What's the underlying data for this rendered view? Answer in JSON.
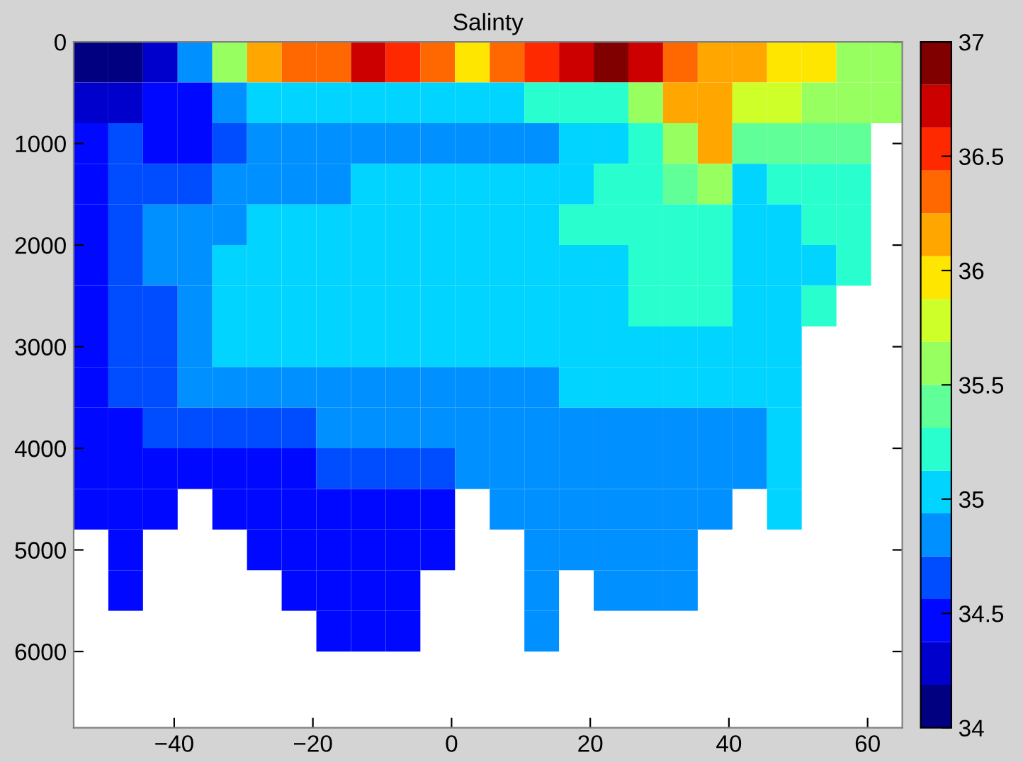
{
  "chart_data": {
    "type": "heatmap",
    "title": "Salinty",
    "x": [
      -52,
      -47,
      -42,
      -37,
      -32,
      -27,
      -22,
      -17,
      -12,
      -7,
      -2,
      3,
      8,
      13,
      18,
      23,
      28,
      33,
      38,
      43,
      48,
      53,
      58,
      63
    ],
    "y": [
      200,
      600,
      1000,
      1400,
      1800,
      2200,
      2600,
      3000,
      3400,
      3800,
      4200,
      4600,
      5000,
      5400,
      5800
    ],
    "xlim": [
      -54.5,
      65
    ],
    "xticks": [
      {
        "value": -40,
        "label": "−40"
      },
      {
        "value": -20,
        "label": "−20"
      },
      0,
      20,
      40,
      60
    ],
    "ylim": [
      6750,
      0
    ],
    "yticks": [
      0,
      1000,
      2000,
      3000,
      4000,
      5000,
      6000
    ],
    "clim": [
      34,
      37
    ],
    "cticks": [
      34,
      34.5,
      35,
      35.5,
      36,
      36.5,
      37
    ],
    "cells": [
      [
        34.1,
        34.1,
        34.3,
        34.8,
        35.5,
        36.1,
        36.3,
        36.4,
        36.7,
        36.5,
        36.3,
        36.0,
        36.3,
        36.6,
        36.8,
        36.9,
        36.7,
        36.3,
        36.1,
        36.1,
        36.0,
        35.9,
        35.6,
        35.5
      ],
      [
        34.3,
        34.3,
        34.4,
        34.45,
        34.9,
        35.0,
        35.0,
        35.0,
        35.0,
        35.1,
        35.1,
        35.1,
        35.0,
        35.2,
        35.2,
        35.3,
        35.6,
        36.1,
        36.1,
        35.7,
        35.7,
        35.5,
        35.5,
        35.5
      ],
      [
        34.45,
        34.6,
        34.4,
        34.45,
        34.7,
        34.8,
        34.8,
        34.8,
        34.8,
        34.8,
        34.8,
        34.9,
        34.9,
        34.9,
        35.1,
        35.1,
        35.2,
        35.5,
        36.1,
        35.4,
        35.4,
        35.4,
        35.4,
        null
      ],
      [
        34.5,
        34.7,
        34.6,
        34.7,
        34.8,
        34.9,
        34.9,
        34.9,
        35.0,
        35.0,
        35.0,
        35.0,
        35.0,
        35.1,
        35.1,
        35.2,
        35.3,
        35.4,
        35.6,
        35.1,
        35.3,
        35.3,
        35.3,
        null
      ],
      [
        34.5,
        34.7,
        34.8,
        34.8,
        34.9,
        35.0,
        35.0,
        35.0,
        35.0,
        35.0,
        35.0,
        35.1,
        35.1,
        35.1,
        35.2,
        35.2,
        35.3,
        35.2,
        35.2,
        35.0,
        35.0,
        35.2,
        35.3,
        null
      ],
      [
        34.5,
        34.6,
        34.8,
        34.9,
        35.0,
        35.1,
        35.1,
        35.1,
        35.1,
        35.1,
        35.1,
        35.1,
        35.1,
        35.1,
        35.1,
        35.1,
        35.2,
        35.2,
        35.2,
        35.0,
        35.0,
        35.1,
        35.3,
        null
      ],
      [
        34.5,
        34.6,
        34.7,
        34.9,
        35.1,
        35.1,
        35.1,
        35.1,
        35.1,
        35.1,
        35.1,
        35.1,
        35.1,
        35.1,
        35.1,
        35.1,
        35.2,
        35.2,
        35.2,
        35.0,
        35.0,
        35.2,
        null,
        null
      ],
      [
        34.5,
        34.6,
        34.7,
        34.9,
        35.0,
        35.0,
        35.0,
        35.0,
        35.0,
        35.0,
        35.0,
        35.0,
        35.0,
        35.0,
        35.0,
        35.1,
        35.1,
        35.1,
        35.1,
        35.0,
        35.0,
        null,
        null,
        null
      ],
      [
        34.5,
        34.6,
        34.7,
        34.8,
        34.8,
        34.9,
        34.9,
        34.9,
        34.9,
        34.9,
        34.9,
        34.9,
        34.9,
        34.9,
        35.0,
        35.0,
        35.0,
        35.1,
        35.0,
        35.0,
        35.1,
        null,
        null,
        null
      ],
      [
        34.5,
        34.5,
        34.6,
        34.7,
        34.7,
        34.7,
        34.7,
        34.8,
        34.8,
        34.8,
        34.8,
        34.8,
        34.9,
        34.8,
        34.9,
        34.9,
        34.9,
        34.9,
        34.9,
        34.9,
        35.0,
        null,
        null,
        null
      ],
      [
        34.5,
        34.5,
        34.5,
        34.5,
        34.5,
        34.5,
        34.5,
        34.6,
        34.6,
        34.6,
        34.6,
        34.8,
        34.8,
        34.8,
        34.9,
        34.8,
        34.9,
        34.9,
        34.9,
        34.9,
        35.0,
        null,
        null,
        null
      ],
      [
        34.5,
        34.5,
        34.5,
        null,
        34.5,
        34.5,
        34.5,
        34.5,
        34.5,
        34.5,
        34.5,
        null,
        34.8,
        34.8,
        34.9,
        34.8,
        34.9,
        34.9,
        34.9,
        null,
        35.0,
        null,
        null,
        null
      ],
      [
        null,
        34.45,
        null,
        null,
        null,
        34.5,
        34.5,
        34.5,
        34.5,
        34.5,
        34.5,
        null,
        null,
        34.8,
        34.9,
        34.8,
        34.9,
        34.9,
        null,
        null,
        null,
        null,
        null,
        null
      ],
      [
        null,
        34.5,
        null,
        null,
        null,
        null,
        34.5,
        34.5,
        34.5,
        34.5,
        null,
        null,
        null,
        34.8,
        null,
        34.8,
        34.9,
        34.9,
        null,
        null,
        null,
        null,
        null,
        null
      ],
      [
        null,
        null,
        null,
        null,
        null,
        null,
        null,
        34.5,
        34.5,
        34.5,
        null,
        null,
        null,
        34.8,
        null,
        null,
        null,
        null,
        null,
        null,
        null,
        null,
        null,
        null
      ]
    ]
  }
}
